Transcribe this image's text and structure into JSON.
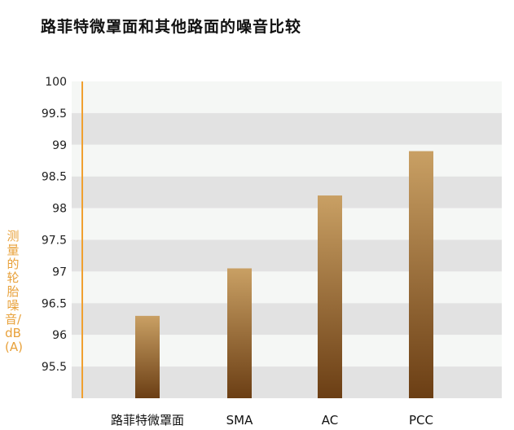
{
  "chart_data": {
    "type": "bar",
    "title": "路菲特微罩面和其他路面的噪音比较",
    "ylabel": "测量的轮胎噪音/dB (A)",
    "xlabel": "",
    "categories": [
      "路菲特微罩面",
      "SMA",
      "AC",
      "PCC"
    ],
    "values": [
      96.3,
      97.05,
      98.2,
      98.9
    ],
    "ylim": [
      95,
      100
    ],
    "yticks": [
      "95.5",
      "96",
      "96.5",
      "97",
      "97.5",
      "98",
      "98.5",
      "99",
      "99.5",
      "100"
    ],
    "grid": "alternating horizontal bands",
    "legend": "none",
    "colors": {
      "bar_top": "#c9a064",
      "bar_bottom": "#6b3e14",
      "band_dark": "#e2e2e2",
      "band_light": "#f5f7f5",
      "axis": "#f0a030",
      "ylabel": "#e8a13a"
    }
  }
}
